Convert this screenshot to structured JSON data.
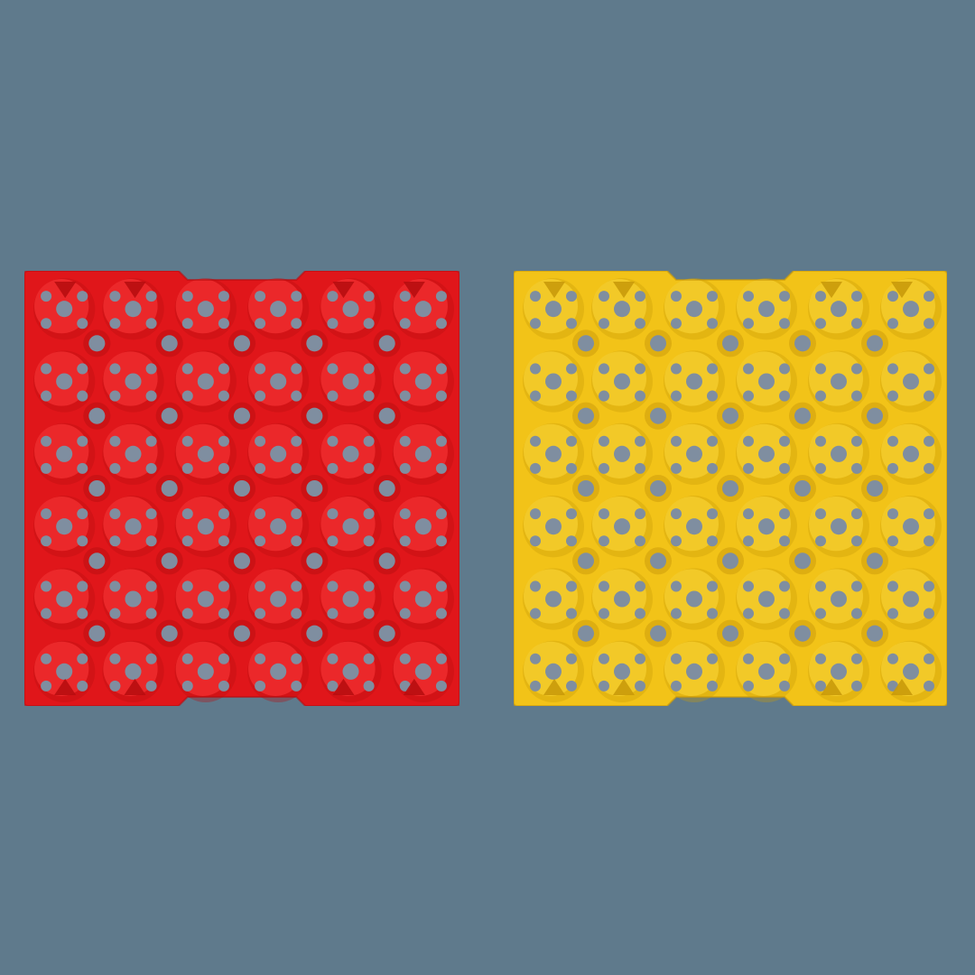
{
  "scene": {
    "background_color": "#5f7a8c"
  },
  "trays": [
    {
      "id": "red",
      "color": "#e0161a",
      "shade": "#b80d10",
      "light": "#ff3a3c",
      "hole_color": "#7f8ea0",
      "grid": {
        "rows": 6,
        "cols": 6
      }
    },
    {
      "id": "yellow",
      "color": "#f2c318",
      "shade": "#c99a0a",
      "light": "#ffd93a",
      "hole_color": "#7f8ea0",
      "grid": {
        "rows": 6,
        "cols": 6
      }
    }
  ]
}
